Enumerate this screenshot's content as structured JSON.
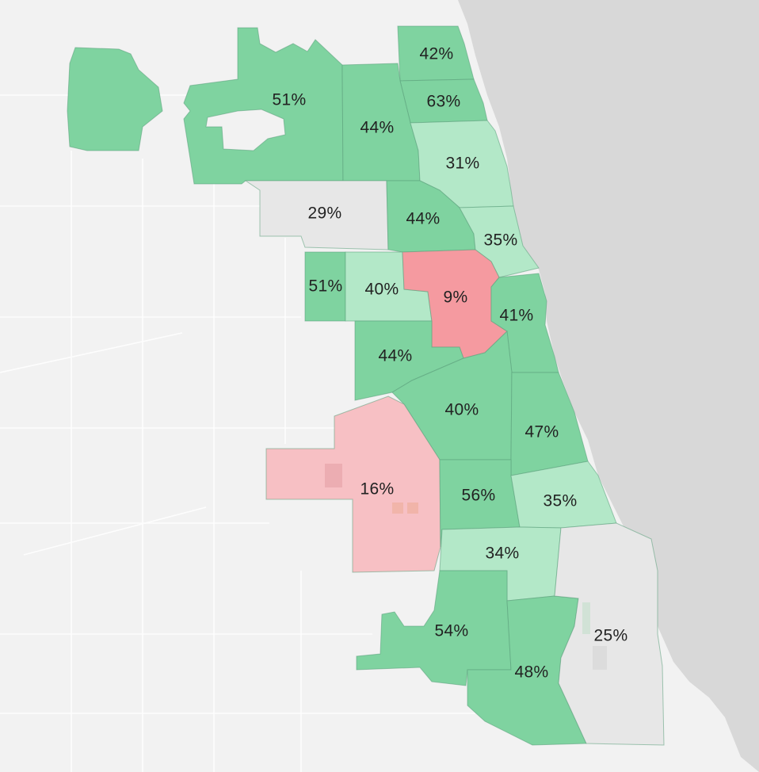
{
  "map": {
    "colors": {
      "land": "#f2f2f2",
      "water": "#d8d8d8",
      "road": "#ffffff",
      "highlight_strong": "#7fd3a0",
      "highlight_light": "#b3e8c8",
      "low_strong": "#f59aa0",
      "low_light": "#f7c0c4",
      "neutral": "#e7e7e7"
    },
    "districts": [
      {
        "id": "d1",
        "label": "42%",
        "fill": "#7fd3a0"
      },
      {
        "id": "d2",
        "label": "63%",
        "fill": "#7fd3a0"
      },
      {
        "id": "d3",
        "label": "51%",
        "fill": "#7fd3a0"
      },
      {
        "id": "d4",
        "label": "44%",
        "fill": "#7fd3a0"
      },
      {
        "id": "d5",
        "label": "31%",
        "fill": "#b3e8c8"
      },
      {
        "id": "d6",
        "label": "29%",
        "fill": "#e7e7e7"
      },
      {
        "id": "d7",
        "label": "44%",
        "fill": "#7fd3a0"
      },
      {
        "id": "d8",
        "label": "35%",
        "fill": "#b3e8c8"
      },
      {
        "id": "d9",
        "label": "51%",
        "fill": "#7fd3a0"
      },
      {
        "id": "d10",
        "label": "40%",
        "fill": "#b3e8c8"
      },
      {
        "id": "d11",
        "label": "9%",
        "fill": "#f59aa0"
      },
      {
        "id": "d12",
        "label": "41%",
        "fill": "#7fd3a0"
      },
      {
        "id": "d13",
        "label": "44%",
        "fill": "#7fd3a0"
      },
      {
        "id": "d14",
        "label": "40%",
        "fill": "#7fd3a0"
      },
      {
        "id": "d15",
        "label": "47%",
        "fill": "#7fd3a0"
      },
      {
        "id": "d16",
        "label": "16%",
        "fill": "#f7c0c4"
      },
      {
        "id": "d17",
        "label": "56%",
        "fill": "#7fd3a0"
      },
      {
        "id": "d18",
        "label": "35%",
        "fill": "#b3e8c8"
      },
      {
        "id": "d19",
        "label": "34%",
        "fill": "#b3e8c8"
      },
      {
        "id": "d20",
        "label": "54%",
        "fill": "#7fd3a0"
      },
      {
        "id": "d21",
        "label": "48%",
        "fill": "#7fd3a0"
      },
      {
        "id": "d22",
        "label": "25%",
        "fill": "#e7e7e7"
      }
    ]
  }
}
